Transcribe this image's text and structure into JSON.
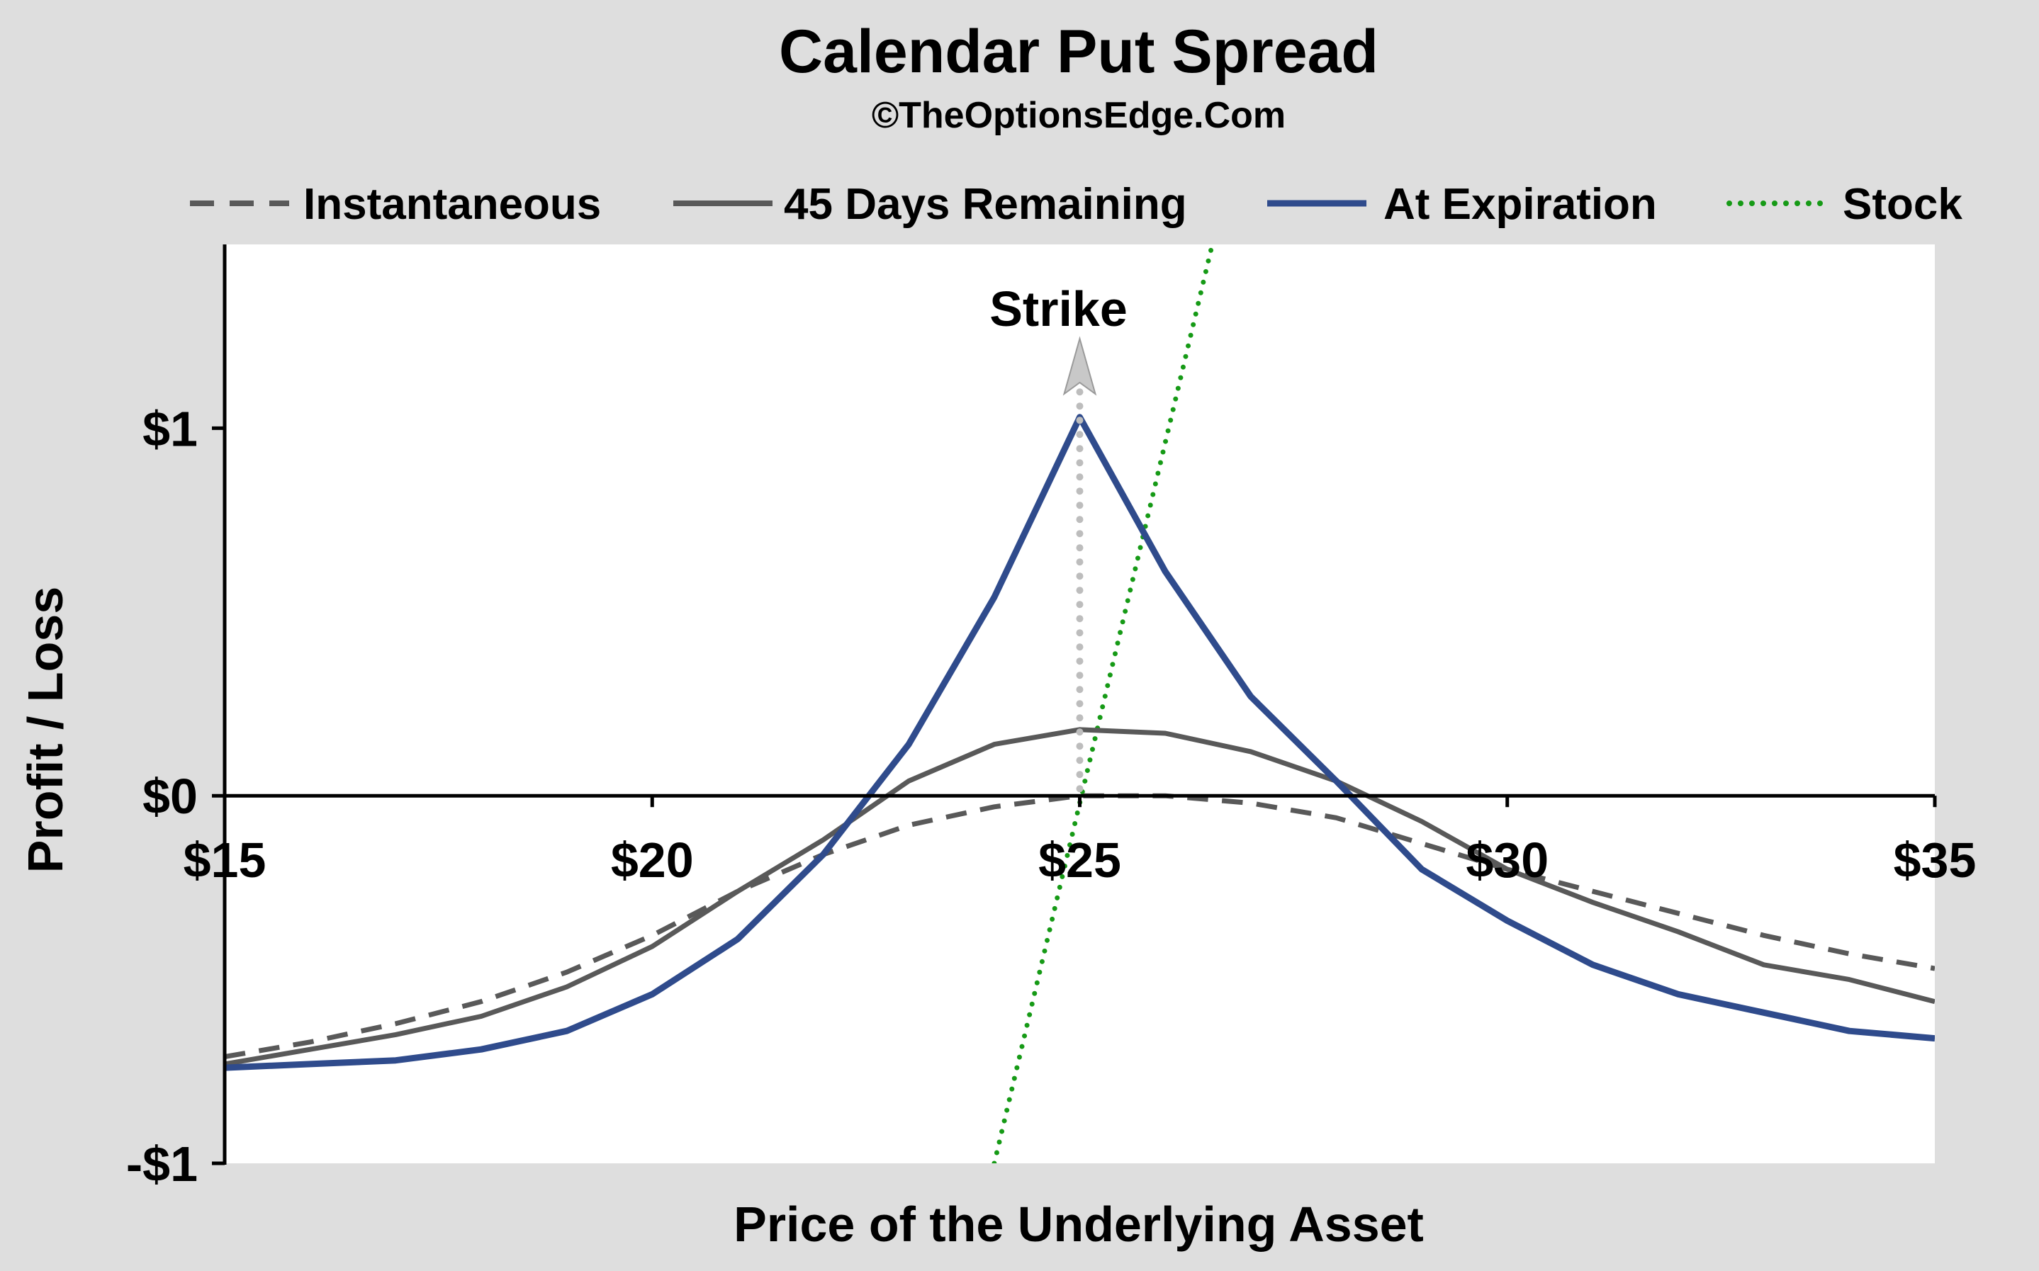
{
  "chart_data": {
    "type": "line",
    "title": "Calendar Put Spread",
    "subtitle": "©TheOptionsEdge.Com",
    "xlabel": "Price of the Underlying Asset",
    "ylabel": "Profit / Loss",
    "xlim": [
      15,
      35
    ],
    "ylim": [
      -1,
      1.5
    ],
    "x_ticks": [
      {
        "value": 15,
        "label": "$15"
      },
      {
        "value": 20,
        "label": "$20"
      },
      {
        "value": 25,
        "label": "$25"
      },
      {
        "value": 30,
        "label": "$30"
      },
      {
        "value": 35,
        "label": "$35"
      }
    ],
    "y_ticks": [
      {
        "value": 1,
        "label": "$1"
      },
      {
        "value": 0,
        "label": "$0"
      },
      {
        "value": -1,
        "label": "-$1"
      }
    ],
    "legend_position": "top",
    "grid": false,
    "x": [
      15,
      16,
      17,
      18,
      19,
      20,
      21,
      22,
      23,
      24,
      25,
      26,
      27,
      28,
      29,
      30,
      31,
      32,
      33,
      34,
      35
    ],
    "series": [
      {
        "name": "Instantaneous",
        "style": "dashed",
        "color": "#595959",
        "values": [
          -0.71,
          -0.67,
          -0.62,
          -0.56,
          -0.48,
          -0.38,
          -0.26,
          -0.16,
          -0.08,
          -0.03,
          0.0,
          0.0,
          -0.02,
          -0.06,
          -0.13,
          -0.2,
          -0.26,
          -0.32,
          -0.38,
          -0.43,
          -0.47
        ]
      },
      {
        "name": "45 Days Remaining",
        "style": "solid",
        "color": "#595959",
        "values": [
          -0.73,
          -0.69,
          -0.65,
          -0.6,
          -0.52,
          -0.41,
          -0.26,
          -0.12,
          0.04,
          0.14,
          0.18,
          0.17,
          0.12,
          0.04,
          -0.07,
          -0.2,
          -0.29,
          -0.37,
          -0.46,
          -0.5,
          -0.56
        ]
      },
      {
        "name": "At Expiration",
        "style": "solid",
        "color": "#2f4b8c",
        "values": [
          -0.74,
          -0.73,
          -0.72,
          -0.69,
          -0.64,
          -0.54,
          -0.39,
          -0.16,
          0.14,
          0.54,
          1.03,
          0.61,
          0.27,
          0.04,
          -0.2,
          -0.34,
          -0.46,
          -0.54,
          -0.59,
          -0.64,
          -0.66
        ]
      },
      {
        "name": "Stock",
        "style": "dotted",
        "color": "#169a16",
        "points": [
          [
            24.0,
            -1.0
          ],
          [
            26.55,
            1.5
          ]
        ]
      }
    ],
    "annotations": [
      {
        "text": "Strike",
        "x": 25
      }
    ]
  }
}
